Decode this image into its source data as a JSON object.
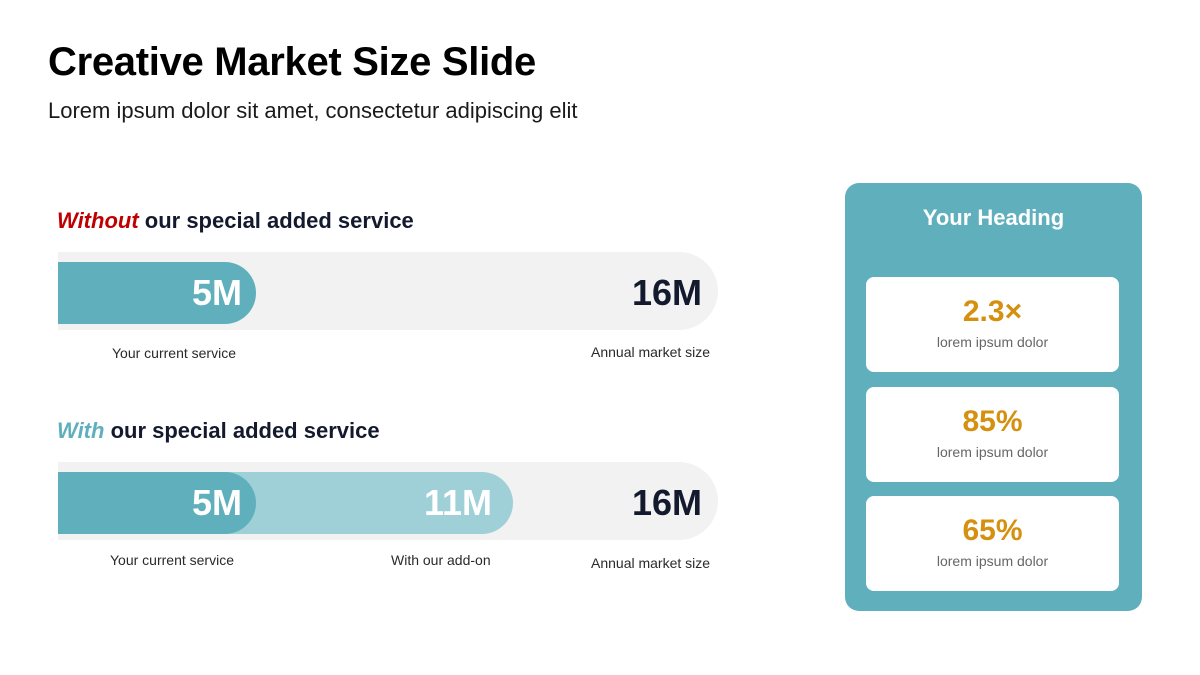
{
  "title": "Creative Market Size Slide",
  "subtitle": "Lorem ipsum dolor sit amet, consectetur adipiscing elit",
  "colors": {
    "teal": "#5fb0bc",
    "light_teal": "#9fd0d7",
    "track": "#f2f2f2",
    "red_accent": "#c00000",
    "gold": "#d4900e",
    "navy_text": "#141a2e"
  },
  "without_section": {
    "accent": "Without",
    "heading_rest": " our special added service",
    "current_value": "5M",
    "market_value": "16M",
    "current_share": 0.3,
    "current_caption": "Your current service",
    "market_caption": "Annual market size"
  },
  "with_section": {
    "accent": "With",
    "heading_rest": " our special added service",
    "current_value": "5M",
    "addon_value": "11M",
    "market_value": "16M",
    "current_share": 0.3,
    "addon_share": 0.69,
    "current_caption": "Your current service",
    "addon_caption": "With our add-on",
    "market_caption": "Annual market size"
  },
  "panel": {
    "heading": "Your Heading",
    "stats": [
      {
        "value": "2.3×",
        "label": "lorem ipsum dolor"
      },
      {
        "value": "85%",
        "label": "lorem ipsum dolor"
      },
      {
        "value": "65%",
        "label": "lorem ipsum dolor"
      }
    ]
  }
}
